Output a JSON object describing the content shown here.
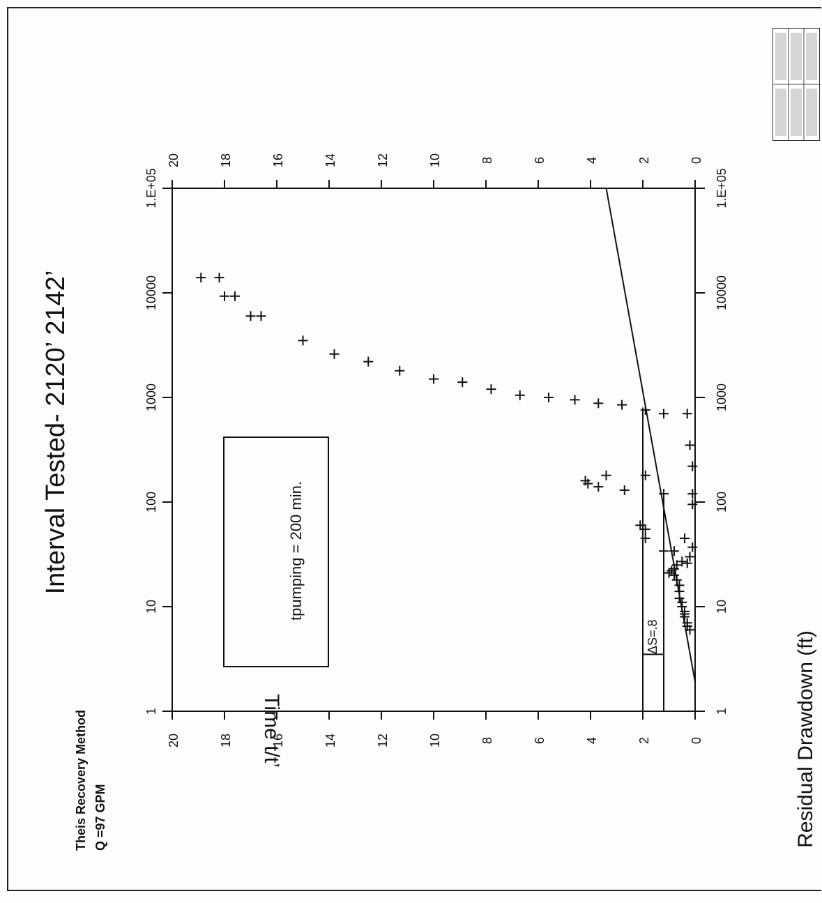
{
  "title": {
    "main": "Interval Tested-  2120’  2142’",
    "method": "Theis Recovery Method",
    "rate": "Q =97 GPM"
  },
  "annotation": {
    "box": "tpumping = 200 min.",
    "delta": "ΔS=.8"
  },
  "stamp": {
    "rows": [
      "",
      "",
      "",
      "",
      ""
    ]
  },
  "chart_data": {
    "type": "scatter",
    "title": "Interval Tested-  2120’  2142’",
    "xlabel": "Time  t/t’",
    "ylabel": "Residual Drawdown (ft)",
    "x_scale": "log",
    "xlim": [
      1,
      100000
    ],
    "ylim": [
      0,
      20
    ],
    "x_tick_labels": [
      "1",
      "10",
      "100",
      "1000",
      "10000",
      "1.E+05"
    ],
    "y_tick_labels": [
      "0",
      "2",
      "4",
      "6",
      "8",
      "10",
      "12",
      "14",
      "16",
      "18",
      "20"
    ],
    "grid": false,
    "series": [
      {
        "points": [
          [
            14000,
            18.9
          ],
          [
            14000,
            18.2
          ],
          [
            9300,
            18.0
          ],
          [
            9300,
            17.6
          ],
          [
            6000,
            17.0
          ],
          [
            6000,
            16.6
          ],
          [
            3500,
            15.0
          ],
          [
            2600,
            13.8
          ],
          [
            2200,
            12.5
          ],
          [
            1800,
            11.3
          ],
          [
            1500,
            10.0
          ],
          [
            1400,
            8.9
          ],
          [
            1200,
            7.8
          ],
          [
            1050,
            6.7
          ],
          [
            1000,
            5.6
          ],
          [
            950,
            4.6
          ],
          [
            880,
            3.7
          ],
          [
            850,
            2.8
          ],
          [
            760,
            1.9
          ],
          [
            700,
            1.2
          ],
          [
            700,
            0.3
          ],
          [
            160,
            4.2
          ],
          [
            150,
            4.1
          ],
          [
            140,
            3.7
          ],
          [
            180,
            3.4
          ],
          [
            130,
            2.7
          ],
          [
            180,
            1.9
          ],
          [
            120,
            1.2
          ],
          [
            55,
            1.9
          ],
          [
            60,
            2.1
          ],
          [
            45,
            1.9
          ],
          [
            350,
            0.2
          ],
          [
            220,
            0.1
          ],
          [
            120,
            0.1
          ],
          [
            95,
            0.1
          ],
          [
            45,
            0.4
          ],
          [
            37,
            0.1
          ],
          [
            30,
            0.2
          ],
          [
            26,
            0.3
          ],
          [
            34,
            0.8
          ],
          [
            34,
            1.2
          ],
          [
            27,
            0.5
          ],
          [
            25,
            0.7
          ],
          [
            23,
            0.8
          ],
          [
            21,
            1.0
          ],
          [
            22,
            0.9
          ],
          [
            20,
            0.8
          ],
          [
            18,
            0.7
          ],
          [
            16,
            0.6
          ],
          [
            14,
            0.6
          ],
          [
            12,
            0.6
          ],
          [
            11,
            0.5
          ],
          [
            10,
            0.5
          ],
          [
            9,
            0.4
          ],
          [
            8,
            0.4
          ],
          [
            7,
            0.3
          ],
          [
            6.5,
            0.3
          ],
          [
            6,
            0.2
          ],
          [
            8.5,
            0.4
          ]
        ]
      }
    ],
    "fit_line": {
      "x": [
        1.9,
        100000
      ],
      "y": [
        0.0,
        3.4
      ]
    },
    "delta_marker": {
      "x": 3.5,
      "y_low": 1.2,
      "y_high": 2.0
    }
  }
}
